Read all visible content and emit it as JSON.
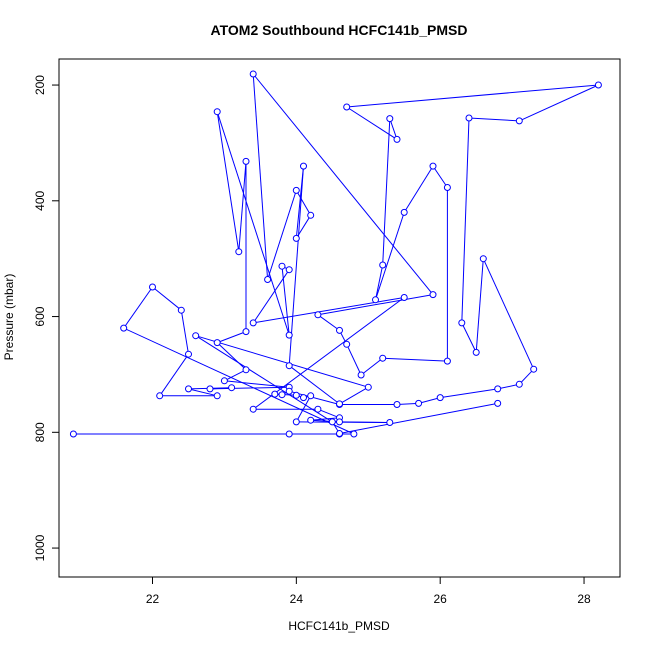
{
  "chart_data": {
    "type": "line",
    "title": "ATOM2 Southbound HCFC141b_PMSD",
    "xlabel": "HCFC141b_PMSD",
    "ylabel": "Pressure (mbar)",
    "xlim": [
      20.7,
      28.5
    ],
    "ylim": [
      1050,
      155
    ],
    "y_reversed": true,
    "x_ticks": [
      22,
      24,
      26,
      28
    ],
    "y_ticks": [
      200,
      400,
      600,
      800,
      1000
    ],
    "grid": false,
    "legend": "none",
    "series_color": "#0000ff",
    "series": [
      {
        "points": [
          [
            20.9,
            803
          ],
          [
            23.9,
            803
          ],
          [
            24.6,
            803
          ],
          [
            24.8,
            803
          ],
          [
            21.6,
            620
          ],
          [
            22.0,
            549
          ],
          [
            22.4,
            589
          ],
          [
            22.5,
            665
          ],
          [
            22.1,
            737
          ],
          [
            22.9,
            737
          ],
          [
            22.5,
            725
          ],
          [
            23.1,
            723
          ],
          [
            22.8,
            725
          ],
          [
            23.9,
            722
          ],
          [
            23.0,
            711
          ],
          [
            23.3,
            692
          ],
          [
            22.9,
            645
          ],
          [
            23.3,
            626
          ],
          [
            23.3,
            332
          ],
          [
            23.2,
            488
          ],
          [
            22.9,
            246
          ],
          [
            23.9,
            632
          ],
          [
            23.8,
            513
          ],
          [
            23.9,
            519
          ],
          [
            23.4,
            611
          ],
          [
            25.5,
            567
          ],
          [
            23.4,
            760
          ],
          [
            24.3,
            760
          ],
          [
            24.6,
            775
          ],
          [
            24.2,
            779
          ],
          [
            24.6,
            782
          ],
          [
            25.3,
            783
          ],
          [
            24.0,
            782
          ],
          [
            24.2,
            737
          ],
          [
            24.1,
            740
          ],
          [
            24.0,
            736
          ],
          [
            23.7,
            734
          ],
          [
            23.8,
            735
          ],
          [
            23.9,
            729
          ],
          [
            24.6,
            752
          ],
          [
            25.4,
            752
          ],
          [
            25.7,
            750
          ],
          [
            26.0,
            740
          ],
          [
            26.8,
            725
          ],
          [
            27.1,
            717
          ],
          [
            27.3,
            691
          ],
          [
            26.6,
            500
          ],
          [
            26.5,
            662
          ],
          [
            26.3,
            611
          ],
          [
            26.4,
            257
          ],
          [
            27.1,
            262
          ],
          [
            28.2,
            200
          ],
          [
            24.7,
            238
          ],
          [
            25.4,
            294
          ],
          [
            25.3,
            258
          ],
          [
            25.2,
            511
          ],
          [
            25.1,
            571
          ],
          [
            25.5,
            420
          ],
          [
            25.9,
            340
          ],
          [
            26.1,
            377
          ],
          [
            26.1,
            677
          ],
          [
            25.2,
            672
          ],
          [
            24.9,
            701
          ],
          [
            24.7,
            648
          ],
          [
            24.6,
            624
          ],
          [
            24.3,
            597
          ],
          [
            25.9,
            562
          ],
          [
            23.4,
            181
          ],
          [
            23.6,
            536
          ],
          [
            24.0,
            382
          ],
          [
            24.2,
            425
          ],
          [
            24.0,
            465
          ],
          [
            24.1,
            340
          ],
          [
            23.9,
            685
          ],
          [
            24.6,
            751
          ],
          [
            25.0,
            722
          ],
          [
            22.6,
            633
          ],
          [
            24.5,
            782
          ],
          [
            24.6,
            802
          ],
          [
            26.8,
            750
          ]
        ]
      }
    ]
  }
}
